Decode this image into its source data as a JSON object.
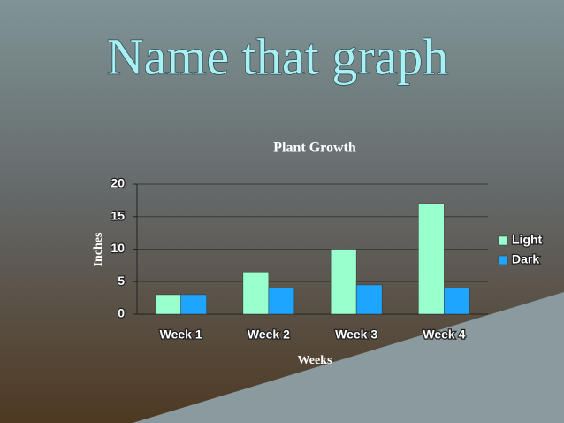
{
  "heading": "Name that graph",
  "chart_data": {
    "type": "bar",
    "title": "Plant Growth",
    "x_label": "Weeks",
    "y_label": "Inches",
    "categories": [
      "Week 1",
      "Week 2",
      "Week 3",
      "Week 4"
    ],
    "series": [
      {
        "name": "Light",
        "color": "#99ffcc",
        "values": [
          3,
          6.5,
          10,
          17
        ]
      },
      {
        "name": "Dark",
        "color": "#1ea6ff",
        "values": [
          3,
          4,
          4.5,
          4
        ]
      }
    ],
    "ylim": [
      0,
      20
    ],
    "yticks": [
      0,
      5,
      10,
      15,
      20
    ],
    "grid": true,
    "legend": "right"
  }
}
